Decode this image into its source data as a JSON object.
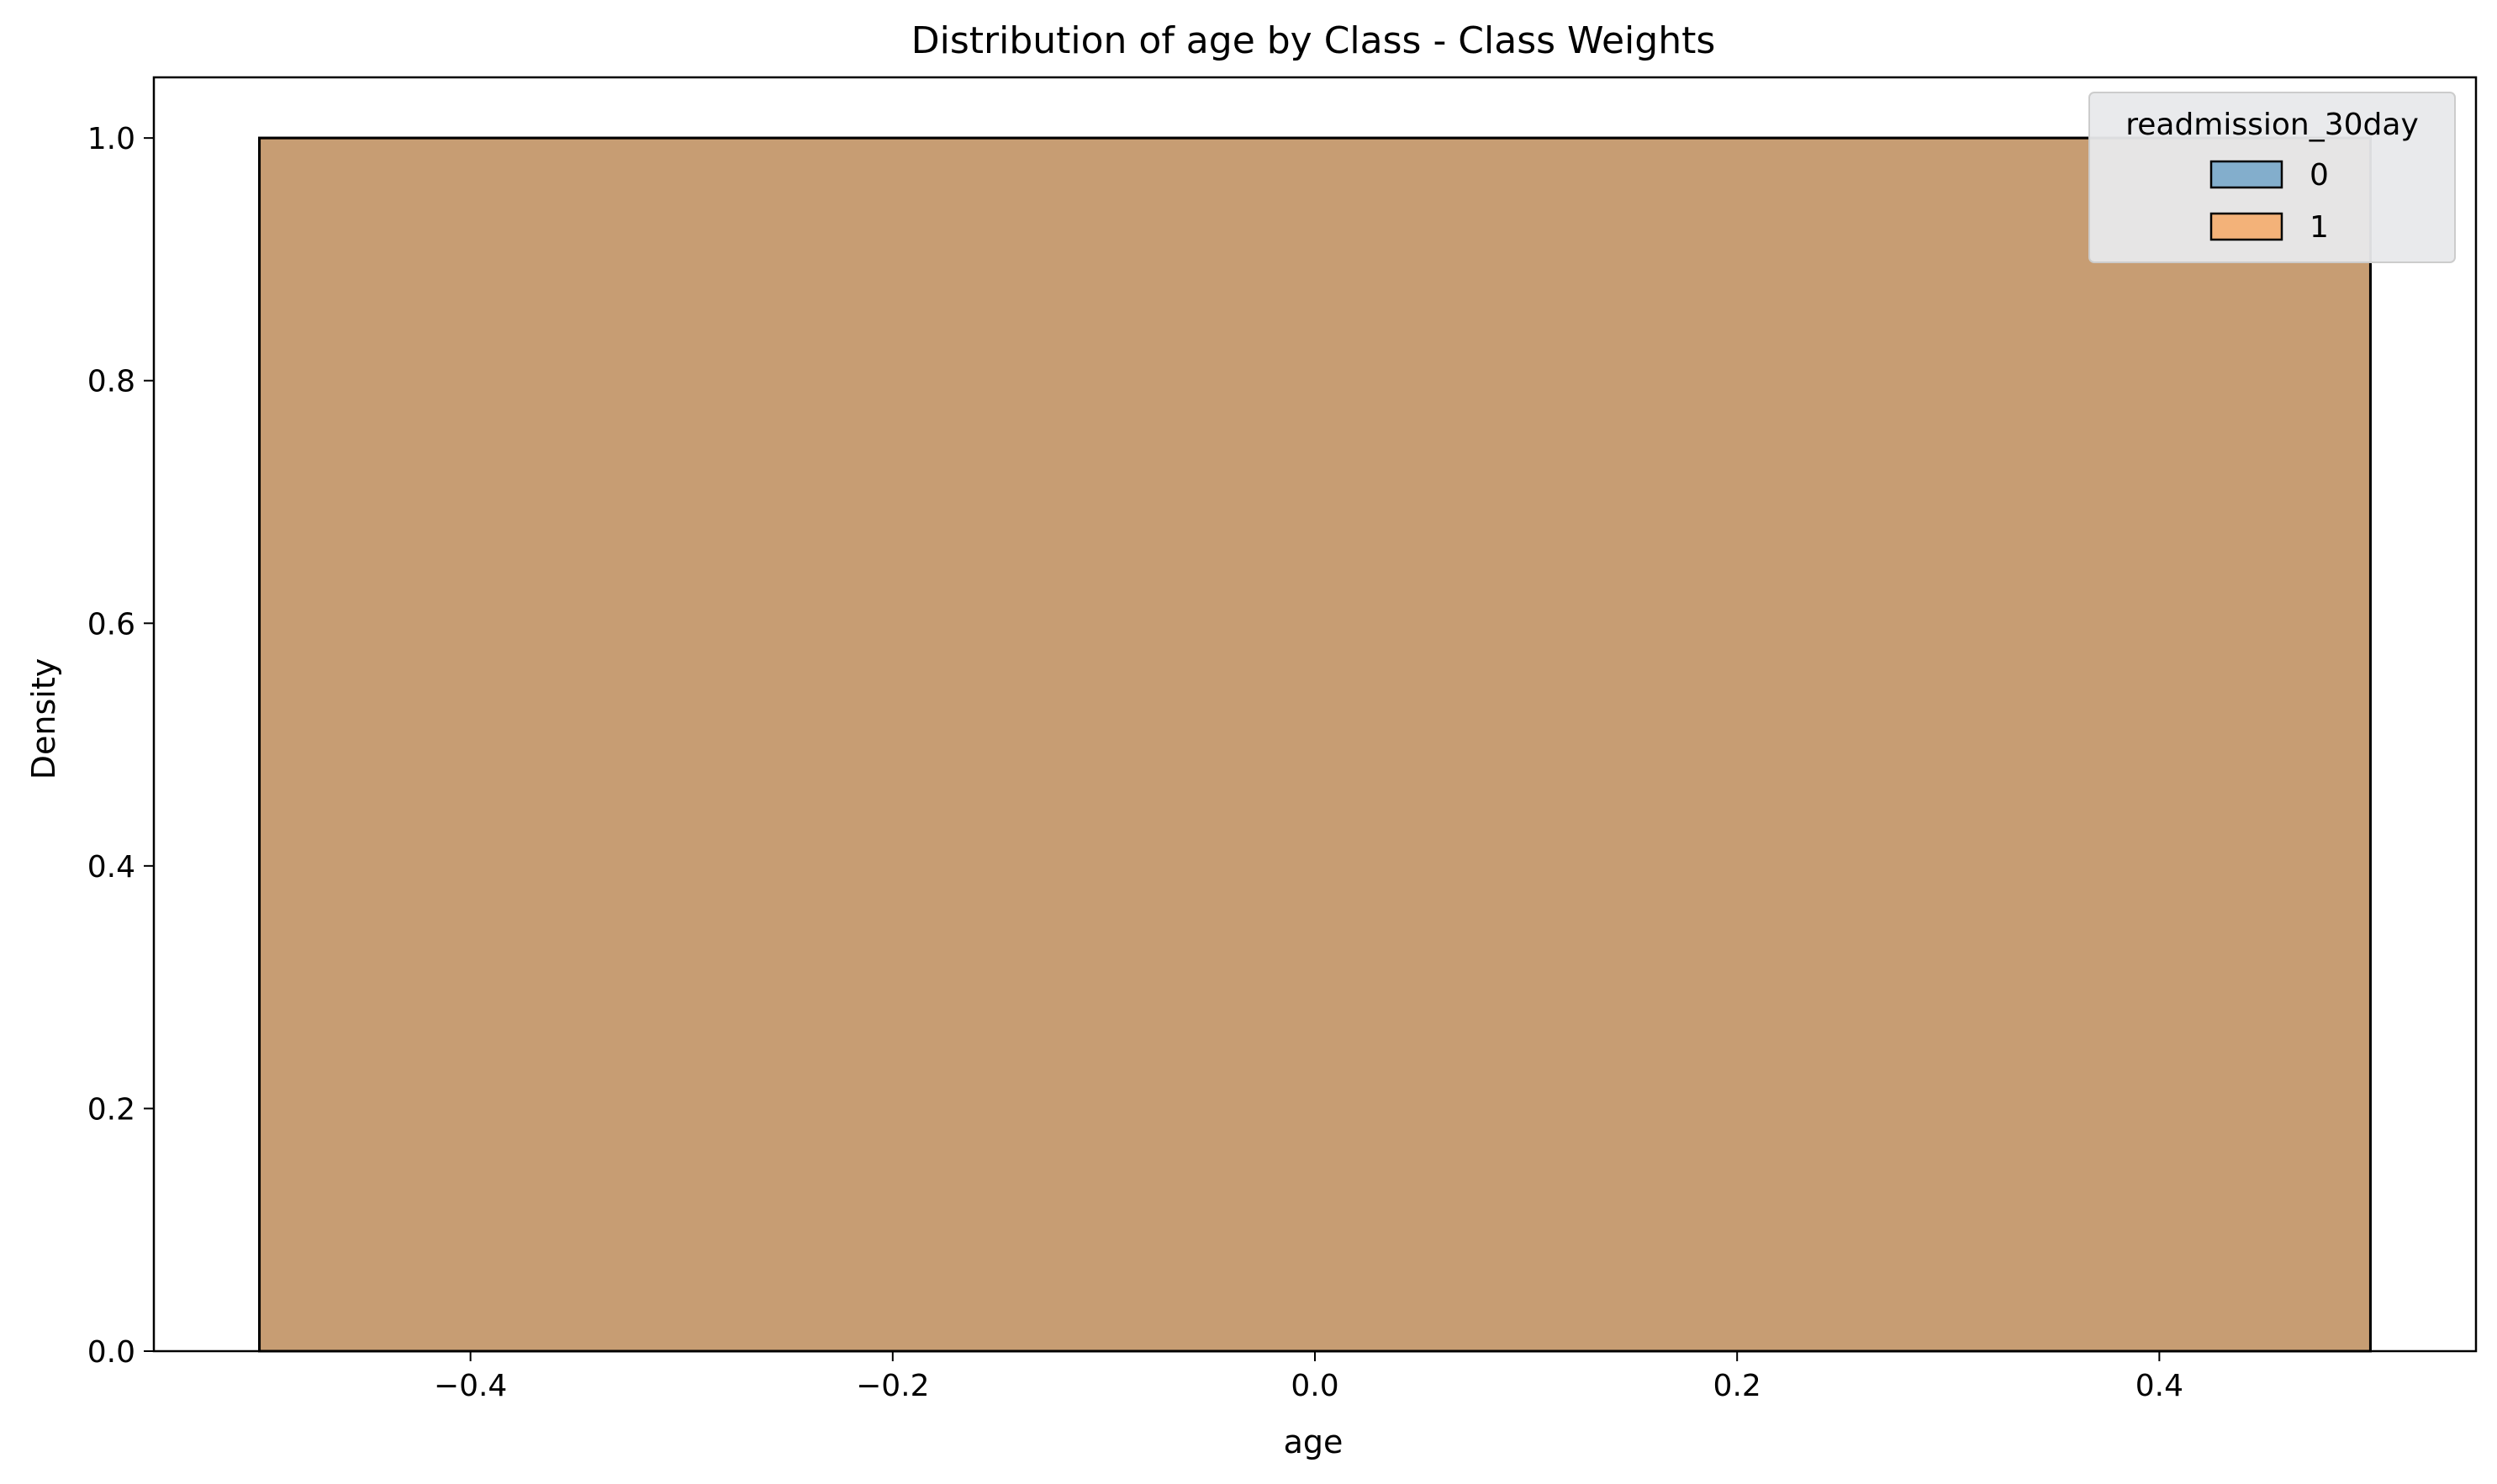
{
  "chart_data": {
    "type": "bar",
    "title": "Distribution of age by Class - Class Weights",
    "xlabel": "age",
    "ylabel": "Density",
    "xlim": [
      -0.55,
      0.55
    ],
    "ylim": [
      0.0,
      1.05
    ],
    "xticks": [
      -0.4,
      -0.2,
      0.0,
      0.2,
      0.4
    ],
    "xtick_labels": [
      "−0.4",
      "−0.2",
      "0.0",
      "0.2",
      "0.4"
    ],
    "yticks": [
      0.0,
      0.2,
      0.4,
      0.6,
      0.8,
      1.0
    ],
    "ytick_labels": [
      "0.0",
      "0.2",
      "0.4",
      "0.6",
      "0.8",
      "1.0"
    ],
    "grid": false,
    "legend": {
      "title": "readmission_30day",
      "placement": "top-right",
      "entries": [
        {
          "label": "0",
          "color": "#1f77b4"
        },
        {
          "label": "1",
          "color": "#ff7f0e"
        }
      ]
    },
    "series": [
      {
        "name": "0",
        "color": "#1f77b4",
        "bins": [
          {
            "x0": -0.5,
            "x1": 0.5,
            "y": 1.0
          }
        ]
      },
      {
        "name": "1",
        "color": "#ff7f0e",
        "bins": [
          {
            "x0": -0.5,
            "x1": 0.5,
            "y": 1.0
          }
        ]
      }
    ]
  }
}
